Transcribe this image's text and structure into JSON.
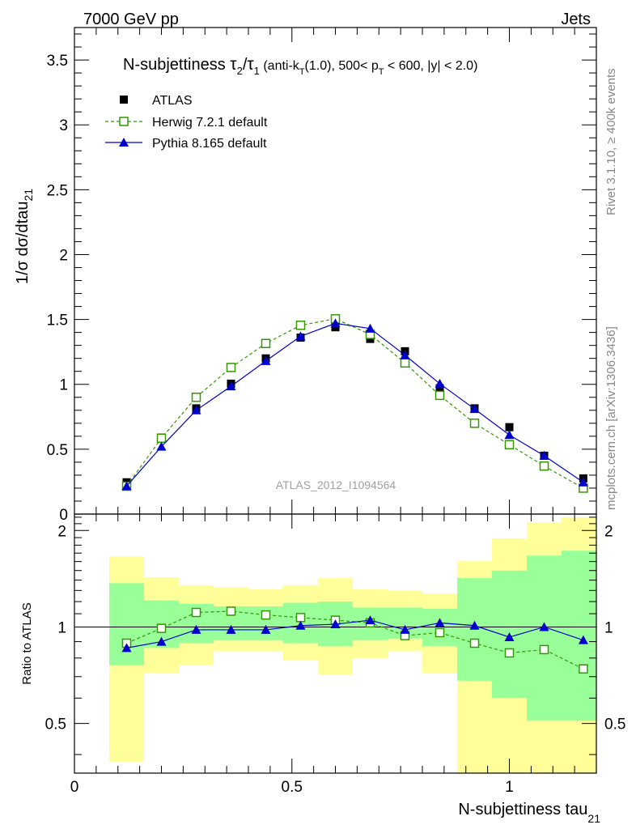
{
  "header": {
    "energy_label": "7000 GeV pp",
    "process_label": "Jets"
  },
  "side_labels": {
    "rivet": "Rivet 3.1.10, ≥ 400k events",
    "mcplots": "mcplots.cern.ch [arXiv:1306.3436]"
  },
  "chart_data": [
    {
      "type": "line",
      "panel": "main",
      "title": {
        "text": "N-subjettiness ",
        "tau2": "τ",
        "tau2_sub": "2",
        "slash": "/",
        "tau1": "τ",
        "tau1_sub": "1",
        "cuts_a": " (anti-k",
        "cuts_a_sub": "T",
        "cuts_b": "(1.0), 500< p",
        "cuts_b_sub": "T",
        "cuts_c": " < 600, |y| < 2.0)"
      },
      "ylabel": "1/σ dσ/dtau",
      "ylabel_sub": "21",
      "watermark": "ATLAS_2012_I1094564",
      "xlim": [
        0,
        1.2
      ],
      "ylim": [
        0,
        3.75
      ],
      "yticks": [
        0,
        0.5,
        1,
        1.5,
        2,
        2.5,
        3,
        3.5
      ],
      "ytick_labels": [
        "0",
        "0.5",
        "1",
        "1.5",
        "2",
        "2.5",
        "3",
        "3.5"
      ],
      "x": [
        0.12,
        0.2,
        0.28,
        0.36,
        0.44,
        0.52,
        0.6,
        0.68,
        0.76,
        0.84,
        0.92,
        1.0,
        1.08,
        1.17
      ],
      "series": [
        {
          "name": "ATLAS",
          "color": "#000000",
          "marker": "filled-square",
          "values": [
            0.245,
            0.59,
            0.815,
            1.005,
            1.2,
            1.36,
            1.44,
            1.35,
            1.255,
            0.97,
            0.815,
            0.67,
            0.45,
            0.275
          ]
        },
        {
          "name": "Herwig 7.2.1 default",
          "color": "#339900",
          "marker": "open-square",
          "line": "dashed",
          "values": [
            0.215,
            0.585,
            0.9,
            1.13,
            1.315,
            1.455,
            1.505,
            1.385,
            1.165,
            0.915,
            0.7,
            0.535,
            0.37,
            0.2
          ]
        },
        {
          "name": "Pythia 8.165 default",
          "color": "#0000cc",
          "marker": "filled-triangle",
          "line": "solid",
          "values": [
            0.215,
            0.52,
            0.8,
            0.985,
            1.18,
            1.37,
            1.47,
            1.43,
            1.225,
            1.005,
            0.81,
            0.61,
            0.45,
            0.245
          ]
        }
      ]
    },
    {
      "type": "line",
      "panel": "ratio",
      "ylabel": "Ratio to ATLAS",
      "xlabel": "N-subjettiness tau",
      "xlabel_sub": "21",
      "xlim": [
        0,
        1.2
      ],
      "ylim": [
        0.35,
        2.25
      ],
      "xticks": [
        0,
        0.5,
        1
      ],
      "xtick_labels": [
        "0",
        "0.5",
        "1"
      ],
      "yticks": [
        0.5,
        1,
        2
      ],
      "ytick_labels": [
        "0.5",
        "1",
        "2"
      ],
      "reference_line": 1,
      "bins": [
        [
          0.08,
          0.16
        ],
        [
          0.16,
          0.24
        ],
        [
          0.24,
          0.32
        ],
        [
          0.32,
          0.4
        ],
        [
          0.4,
          0.48
        ],
        [
          0.48,
          0.56
        ],
        [
          0.56,
          0.64
        ],
        [
          0.64,
          0.72
        ],
        [
          0.72,
          0.8
        ],
        [
          0.8,
          0.88
        ],
        [
          0.88,
          0.96
        ],
        [
          0.96,
          1.04
        ],
        [
          1.04,
          1.12
        ],
        [
          1.12,
          1.2
        ]
      ],
      "uncertainty_bands": {
        "total_color": "#ffff99",
        "stat_color": "#99ff99",
        "total_low": [
          0.38,
          0.72,
          0.76,
          0.84,
          0.84,
          0.79,
          0.71,
          0.8,
          0.84,
          0.72,
          0.28,
          0.28,
          0.28,
          0.28
        ],
        "total_high": [
          1.66,
          1.43,
          1.35,
          1.33,
          1.31,
          1.35,
          1.42,
          1.31,
          1.3,
          1.27,
          1.61,
          1.89,
          2.12,
          2.2
        ],
        "stat_low": [
          0.76,
          0.86,
          0.89,
          0.91,
          0.91,
          0.89,
          0.87,
          0.91,
          0.92,
          0.87,
          0.68,
          0.6,
          0.51,
          0.51
        ],
        "stat_high": [
          1.37,
          1.21,
          1.18,
          1.16,
          1.16,
          1.19,
          1.2,
          1.15,
          1.15,
          1.14,
          1.42,
          1.5,
          1.67,
          1.73
        ]
      },
      "series": [
        {
          "name": "Herwig 7.2.1 default",
          "color": "#339900",
          "marker": "open-square",
          "line": "dashed",
          "values": [
            0.89,
            0.99,
            1.11,
            1.12,
            1.09,
            1.07,
            1.05,
            1.03,
            0.94,
            0.96,
            0.89,
            0.83,
            0.85,
            0.74
          ]
        },
        {
          "name": "Pythia 8.165 default",
          "color": "#0000cc",
          "marker": "filled-triangle",
          "line": "solid",
          "values": [
            0.86,
            0.9,
            0.98,
            0.98,
            0.98,
            1.01,
            1.02,
            1.05,
            0.98,
            1.03,
            1.01,
            0.93,
            1.0,
            0.91
          ]
        }
      ]
    }
  ]
}
